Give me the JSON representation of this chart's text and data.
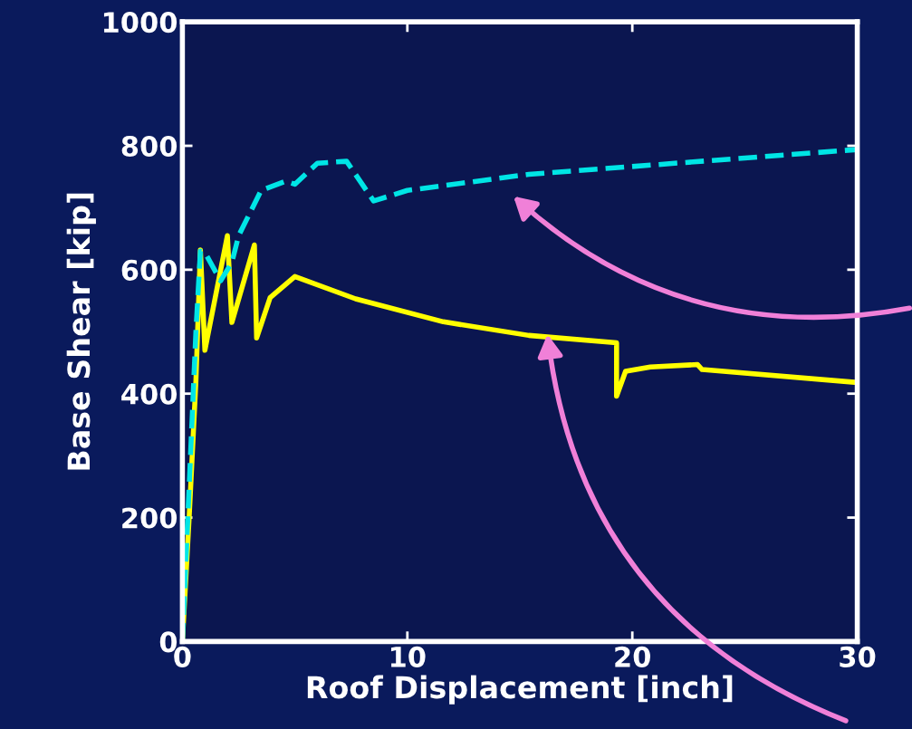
{
  "chart_data": {
    "type": "line",
    "xlabel": "Roof Displacement [inch]",
    "ylabel": "Base Shear [kip]",
    "xlim": [
      0,
      30
    ],
    "ylim": [
      0,
      1000
    ],
    "xticks": [
      0,
      10,
      20,
      30
    ],
    "yticks": [
      0,
      200,
      400,
      600,
      800,
      1000
    ],
    "grid": false,
    "series": [
      {
        "color": "#ffff00",
        "line_style": "solid",
        "x": [
          0,
          0.3,
          0.6,
          0.8,
          1.0,
          2.0,
          2.2,
          3.2,
          3.3,
          3.9,
          5.0,
          7.7,
          11.6,
          15.4,
          19.3,
          19.3,
          19.7,
          20.8,
          22.9,
          23.1,
          30
        ],
        "values": [
          0,
          200,
          420,
          632,
          470,
          655,
          515,
          640,
          490,
          555,
          589,
          553,
          516,
          494,
          482,
          396,
          436,
          443,
          447,
          439,
          418
        ]
      },
      {
        "color": "#00e5e5",
        "line_style": "dashed",
        "x": [
          0,
          0.3,
          0.6,
          0.8,
          1.0,
          1.7,
          2.2,
          2.5,
          3.5,
          4.6,
          5.0,
          6.0,
          7.3,
          8.5,
          10,
          15.4,
          30
        ],
        "values": [
          0,
          250,
          500,
          630,
          628,
          582,
          612,
          655,
          728,
          743,
          738,
          772,
          775,
          711,
          728,
          754,
          794
        ]
      }
    ]
  }
}
